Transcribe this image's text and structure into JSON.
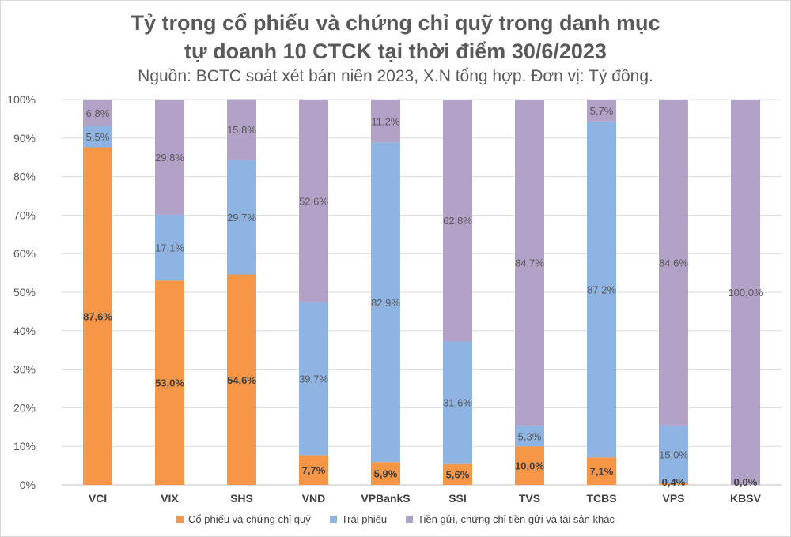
{
  "title_line1": "Tỷ trọng cổ phiếu và chứng chỉ quỹ trong danh mục",
  "title_line2": "tự doanh 10 CTCK tại thời điểm 30/6/2023",
  "subtitle": "Nguồn: BCTC soát xét bán niên 2023, X.N tổng hợp. Đơn vị: Tỷ đồng.",
  "chart_data": {
    "type": "bar",
    "stacked": "percent",
    "categories": [
      "VCI",
      "VIX",
      "SHS",
      "VND",
      "VPBankS",
      "SSI",
      "TVS",
      "TCBS",
      "VPS",
      "KBSV"
    ],
    "series": [
      {
        "name": "Cổ phiếu và chứng chỉ quỹ",
        "color": "#f79646",
        "values": [
          87.6,
          53.0,
          54.6,
          7.7,
          5.9,
          5.6,
          10.0,
          7.1,
          0.4,
          0.0
        ],
        "labels": [
          "87,6%",
          "53,0%",
          "54,6%",
          "7,7%",
          "5,9%",
          "5,6%",
          "10,0%",
          "7,1%",
          "0,4%",
          "0,0%"
        ]
      },
      {
        "name": "Trái phiếu",
        "color": "#8eb4e3",
        "values": [
          5.5,
          17.1,
          29.7,
          39.7,
          82.9,
          31.6,
          5.3,
          87.2,
          15.0,
          0.0
        ],
        "labels": [
          "5,5%",
          "17,1%",
          "29,7%",
          "39,7%",
          "82,9%",
          "31,6%",
          "5,3%",
          "87,2%",
          "15,0%",
          ""
        ]
      },
      {
        "name": "Tiền gửi, chứng chỉ tiền gửi và tài sản khác",
        "color": "#b3a2c7",
        "values": [
          6.8,
          29.8,
          15.8,
          52.6,
          11.2,
          62.8,
          84.7,
          5.7,
          84.6,
          100.0
        ],
        "labels": [
          "6,8%",
          "29,8%",
          "15,8%",
          "52,6%",
          "11,2%",
          "62,8%",
          "84,7%",
          "5,7%",
          "84,6%",
          "100,0%"
        ]
      }
    ],
    "ylim": [
      0,
      100
    ],
    "yticks": [
      "0%",
      "10%",
      "20%",
      "30%",
      "40%",
      "50%",
      "60%",
      "70%",
      "80%",
      "90%",
      "100%"
    ],
    "grid": true,
    "legend": "bottom"
  }
}
